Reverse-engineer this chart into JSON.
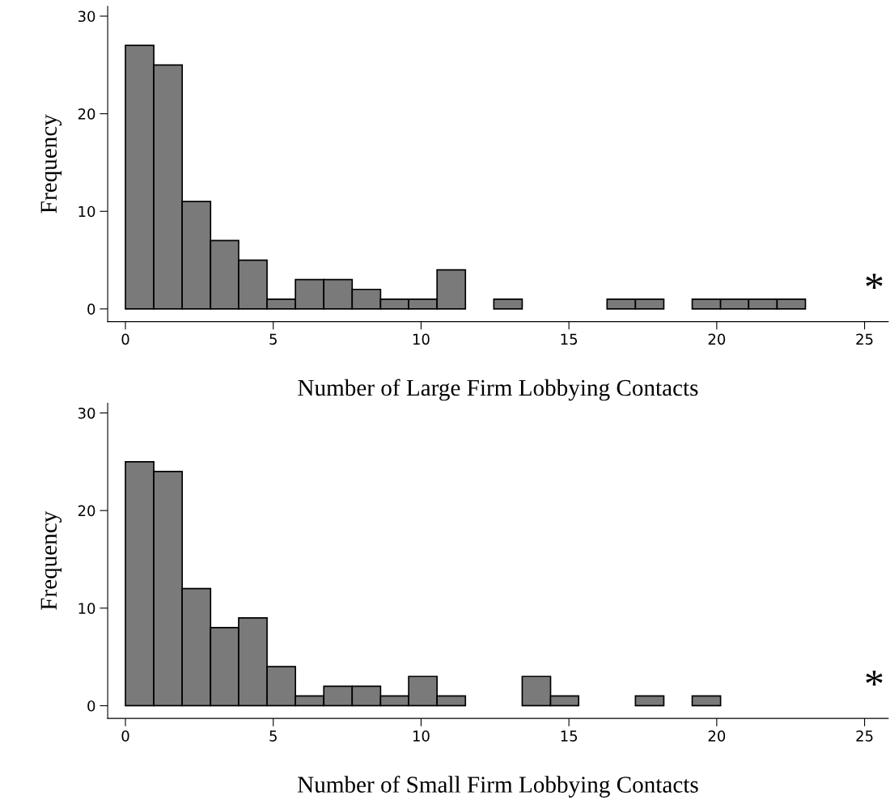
{
  "chart_data": [
    {
      "type": "histogram",
      "xlabel": "Number of Large Firm Lobbying Contacts",
      "ylabel": "Frequency",
      "bins": [
        0,
        0.96,
        1.92,
        2.88,
        3.83,
        4.79,
        5.75,
        6.71,
        7.67,
        8.63,
        9.58,
        10.54,
        11.5,
        12.46,
        13.42,
        14.38,
        15.33,
        16.29,
        17.25,
        18.21,
        19.17,
        20.13,
        21.08,
        22.04,
        23
      ],
      "values": [
        27,
        25,
        11,
        7,
        5,
        1,
        3,
        3,
        2,
        1,
        1,
        4,
        0,
        1,
        0,
        0,
        0,
        1,
        1,
        0,
        1,
        1,
        1,
        1
      ],
      "color": "#7a7a7a",
      "xlim": [
        -0.6,
        25.8
      ],
      "ylim": [
        -1.3,
        31
      ],
      "xticks": [
        0,
        5,
        10,
        15,
        20,
        25
      ],
      "yticks": [
        0,
        10,
        20,
        30
      ],
      "grid": false,
      "annotations": [
        "*"
      ]
    },
    {
      "type": "histogram",
      "xlabel": "Number of Small Firm Lobbying Contacts",
      "ylabel": "Frequency",
      "bins": [
        0,
        0.96,
        1.92,
        2.88,
        3.83,
        4.79,
        5.75,
        6.71,
        7.67,
        8.63,
        9.58,
        10.54,
        11.5,
        12.46,
        13.42,
        14.38,
        15.33,
        16.29,
        17.25,
        18.21,
        19.17,
        20.13
      ],
      "values": [
        25,
        24,
        12,
        8,
        9,
        4,
        1,
        2,
        2,
        1,
        3,
        1,
        0,
        0,
        3,
        1,
        0,
        0,
        1,
        0,
        1
      ],
      "color": "#7a7a7a",
      "xlim": [
        -0.6,
        25.8
      ],
      "ylim": [
        -1.3,
        31
      ],
      "xticks": [
        0,
        5,
        10,
        15,
        20,
        25
      ],
      "yticks": [
        0,
        10,
        20,
        30
      ],
      "grid": false,
      "annotations": [
        "*"
      ]
    }
  ]
}
